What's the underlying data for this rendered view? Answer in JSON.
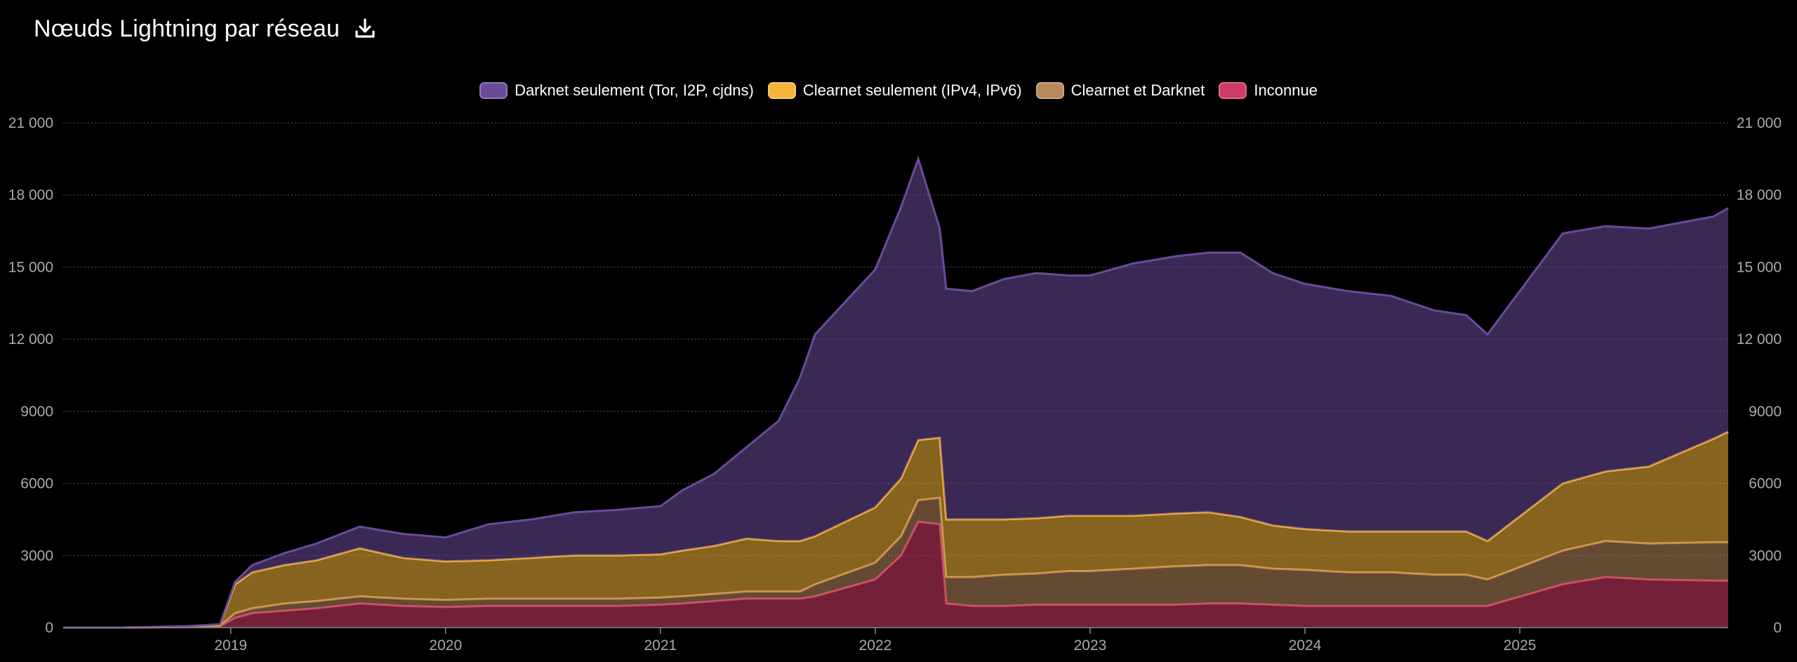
{
  "header": {
    "title": "Nœuds Lightning par réseau",
    "download_icon": "download-icon"
  },
  "colors": {
    "darknet": "#6b4a9a",
    "clearnet": "#f5b53a",
    "both": "#b8875c",
    "unknown": "#d13b66",
    "background": "#000000",
    "grid": "#555555",
    "axis_text": "#aaaaaa"
  },
  "chart_data": {
    "type": "area",
    "stacked": true,
    "legend_position": "top-center",
    "grid": true,
    "title": "Nœuds Lightning par réseau",
    "x_ticks": [
      "2019",
      "2020",
      "2021",
      "2022",
      "2023",
      "2024",
      "2025"
    ],
    "y_ticks": [
      "0",
      "3000",
      "6000",
      "9000",
      "12 000",
      "15 000",
      "18 000",
      "21 000"
    ],
    "ylim": [
      0,
      21000
    ],
    "xlim": [
      2018.22,
      2025.97
    ],
    "x": [
      2018.22,
      2018.5,
      2018.8,
      2018.95,
      2019.02,
      2019.1,
      2019.25,
      2019.4,
      2019.6,
      2019.8,
      2020.0,
      2020.2,
      2020.4,
      2020.6,
      2020.8,
      2021.0,
      2021.1,
      2021.25,
      2021.4,
      2021.55,
      2021.65,
      2021.72,
      2022.0,
      2022.12,
      2022.2,
      2022.3,
      2022.33,
      2022.45,
      2022.6,
      2022.75,
      2022.9,
      2023.0,
      2023.2,
      2023.4,
      2023.55,
      2023.7,
      2023.85,
      2024.0,
      2024.2,
      2024.4,
      2024.6,
      2024.75,
      2024.85,
      2025.2,
      2025.4,
      2025.6,
      2025.9,
      2025.97
    ],
    "series": [
      {
        "name": "Darknet seulement (Tor, I2P, cjdns)",
        "color": "#6b4a9a",
        "values": [
          0,
          0,
          10,
          30,
          100,
          300,
          500,
          700,
          900,
          1000,
          1000,
          1500,
          1600,
          1800,
          1900,
          2000,
          2500,
          3000,
          3800,
          5000,
          6800,
          8400,
          9900,
          11300,
          11700,
          8700,
          9600,
          9500,
          10000,
          10200,
          10000,
          10000,
          10500,
          10700,
          10800,
          11000,
          10500,
          10200,
          10000,
          9800,
          9200,
          9000,
          8600,
          10400,
          10200,
          9900,
          9250,
          9300
        ]
      },
      {
        "name": "Clearnet seulement (IPv4, IPv6)",
        "color": "#f5b53a",
        "values": [
          0,
          0,
          20,
          40,
          1200,
          1500,
          1600,
          1700,
          2000,
          1700,
          1600,
          1600,
          1700,
          1800,
          1800,
          1800,
          1900,
          2000,
          2200,
          2100,
          2100,
          2000,
          2300,
          2400,
          2500,
          2500,
          2400,
          2400,
          2300,
          2300,
          2300,
          2300,
          2200,
          2200,
          2200,
          2000,
          1800,
          1700,
          1700,
          1700,
          1800,
          1800,
          1600,
          2800,
          2900,
          3200,
          4300,
          4600
        ]
      },
      {
        "name": "Clearnet et Darknet",
        "color": "#b8875c",
        "values": [
          0,
          0,
          10,
          20,
          200,
          200,
          300,
          300,
          300,
          300,
          300,
          300,
          300,
          300,
          300,
          300,
          300,
          300,
          300,
          300,
          300,
          500,
          700,
          800,
          900,
          1100,
          1100,
          1200,
          1300,
          1300,
          1400,
          1400,
          1500,
          1600,
          1600,
          1600,
          1500,
          1500,
          1400,
          1400,
          1300,
          1300,
          1100,
          1400,
          1500,
          1500,
          1600,
          1600
        ]
      },
      {
        "name": "Inconnue",
        "color": "#d13b66",
        "values": [
          0,
          0,
          20,
          50,
          400,
          600,
          700,
          800,
          1000,
          900,
          850,
          900,
          900,
          900,
          900,
          950,
          1000,
          1100,
          1200,
          1200,
          1200,
          1300,
          2000,
          3000,
          4400,
          4300,
          1000,
          900,
          900,
          950,
          950,
          950,
          950,
          950,
          1000,
          1000,
          950,
          900,
          900,
          900,
          900,
          900,
          900,
          1800,
          2100,
          2000,
          1950,
          1950
        ]
      }
    ]
  }
}
